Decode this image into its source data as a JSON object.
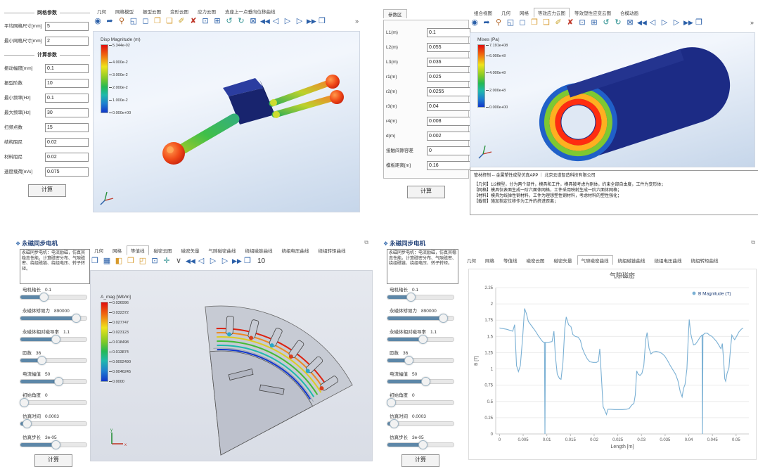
{
  "colors": {
    "accent": "#2a5fa8",
    "chart_line": "#7ab0d4",
    "title_blue": "#1f3f77",
    "slider_fill": "#5d87a8",
    "viewport_blue_top": "#e9f0fa",
    "viewport_blue_bottom": "#c6d6ea",
    "colorbar_top": "#e00d0d",
    "colorbar_bottom": "#1136c9"
  },
  "viewer_toolbar": {
    "icons": [
      {
        "name": "capture-icon",
        "glyph": "◉",
        "color": "#2a5fa8"
      },
      {
        "name": "export-view-icon",
        "glyph": "➦",
        "color": "#2a5fa8"
      },
      {
        "name": "magnifier-icon",
        "glyph": "⚲",
        "color": "#b06020"
      },
      {
        "name": "fit-region-icon",
        "glyph": "◱",
        "color": "#2a5fa8"
      },
      {
        "name": "select-region-icon",
        "glyph": "◻",
        "color": "#2a5fa8"
      },
      {
        "name": "folder-open-icon",
        "glyph": "❐",
        "color": "#d79a2b"
      },
      {
        "name": "folder-new-icon",
        "glyph": "❏",
        "color": "#d79a2b"
      },
      {
        "name": "brush-icon",
        "glyph": "✐",
        "color": "#c9a227"
      },
      {
        "name": "delete-icon",
        "glyph": "✘",
        "color": "#c0392b"
      },
      {
        "name": "zoom-window-icon",
        "glyph": "⊡",
        "color": "#2a5fa8"
      },
      {
        "name": "center-model-icon",
        "glyph": "⊞",
        "color": "#2a5fa8"
      },
      {
        "name": "rotate-left-icon",
        "glyph": "↺",
        "color": "#2a8f8f"
      },
      {
        "name": "rotate-right-icon",
        "glyph": "↻",
        "color": "#2a8f8f"
      },
      {
        "name": "record-video-icon",
        "glyph": "⊠",
        "color": "#2a5fa8"
      },
      {
        "name": "go-first-icon",
        "glyph": "◀◀",
        "color": "#2a5fa8"
      },
      {
        "name": "step-back-icon",
        "glyph": "◁",
        "color": "#2a5fa8"
      },
      {
        "name": "play-icon",
        "glyph": "▷",
        "color": "#2a5fa8"
      },
      {
        "name": "step-forward-icon",
        "glyph": "▷",
        "color": "#2a5fa8"
      },
      {
        "name": "go-last-icon",
        "glyph": "▶▶",
        "color": "#2a5fa8"
      },
      {
        "name": "export-anim-icon",
        "glyph": "❒",
        "color": "#2a5fa8"
      }
    ],
    "overflow": "»"
  },
  "player_toolbar": {
    "icons": [
      {
        "name": "view-split-icon",
        "glyph": "❐",
        "color": "#2a5fa8"
      },
      {
        "name": "mesh-view-icon",
        "glyph": "▦",
        "color": "#2a5fa8"
      },
      {
        "name": "shade-view-icon",
        "glyph": "◧",
        "color": "#d79a2b"
      },
      {
        "name": "iso-view-icon",
        "glyph": "❒",
        "color": "#d79a2b"
      },
      {
        "name": "wire-view-icon",
        "glyph": "◰",
        "color": "#d79a2b"
      },
      {
        "name": "fit-view-icon",
        "glyph": "⊡",
        "color": "#2a5fa8"
      },
      {
        "name": "axes-icon",
        "glyph": "✛",
        "color": "#2a8f8f"
      },
      {
        "name": "dropdown-caret-icon",
        "glyph": "∨",
        "color": "#555555"
      },
      {
        "name": "go-first-icon",
        "glyph": "◀◀",
        "color": "#2a5fa8"
      },
      {
        "name": "step-back-icon",
        "glyph": "◁",
        "color": "#2a5fa8"
      },
      {
        "name": "play-icon",
        "glyph": "▷",
        "color": "#2a5fa8"
      },
      {
        "name": "step-forward-icon",
        "glyph": "▷",
        "color": "#2a5fa8"
      },
      {
        "name": "go-last-icon",
        "glyph": "▶▶",
        "color": "#2a5fa8"
      },
      {
        "name": "export-anim-icon",
        "glyph": "❒",
        "color": "#2a5fa8"
      }
    ],
    "frame_count": "10"
  },
  "tl": {
    "groups": [
      {
        "title": "网格参数",
        "fields": [
          {
            "label": "平均网格尺寸[mm]",
            "value": "5"
          },
          {
            "label": "最小网格尺寸[mm]",
            "value": "2"
          }
        ]
      },
      {
        "title": "计算参数",
        "fields": [
          {
            "label": "振动幅度[mm]",
            "value": "0.1"
          },
          {
            "label": "振型阶数",
            "value": "10"
          },
          {
            "label": "最小频率[Hz]",
            "value": "0.1"
          },
          {
            "label": "最大频率[Hz]",
            "value": "30"
          },
          {
            "label": "扫频点数",
            "value": "15"
          },
          {
            "label": "结构阻尼",
            "value": "0.02"
          },
          {
            "label": "材料阻尼",
            "value": "0.02"
          },
          {
            "label": "速度载荷[m/s]",
            "value": "0.075"
          }
        ]
      }
    ],
    "calc_button": "计算",
    "tabs": {
      "items": [
        "几何",
        "网格模型",
        "振型云图",
        "变形云图",
        "应力云图",
        "支座上一点垂向位移曲线"
      ],
      "selected": -1
    },
    "colorbar": {
      "title": "Disp Magnitude (m)",
      "ticks": [
        {
          "label": "5.344e-02",
          "pos": 0
        },
        {
          "label": "4.000e-2",
          "pos": 0.251
        },
        {
          "label": "3.000e-2",
          "pos": 0.439
        },
        {
          "label": "2.000e-2",
          "pos": 0.626
        },
        {
          "label": "1.000e-2",
          "pos": 0.813
        },
        {
          "label": "0.000e+00",
          "pos": 1
        }
      ]
    }
  },
  "tr": {
    "panel_tab": "参数区",
    "fields": [
      {
        "label": "L1(m)",
        "value": "0.1"
      },
      {
        "label": "L2(m)",
        "value": "0.055"
      },
      {
        "label": "L3(m)",
        "value": "0.036"
      },
      {
        "label": "r1(m)",
        "value": "0.025"
      },
      {
        "label": "r2(m)",
        "value": "0.0255"
      },
      {
        "label": "r3(m)",
        "value": "0.04"
      },
      {
        "label": "r4(m)",
        "value": "0.008"
      },
      {
        "label": "d(m)",
        "value": "0.002"
      },
      {
        "label": "接触间隙容差",
        "value": "0"
      },
      {
        "label": "模板距离[m]",
        "value": "0.16"
      }
    ],
    "calc_button": "计算",
    "tabs": {
      "items": [
        "组合视图",
        "几何",
        "网格",
        "等效应力云图",
        "等效塑性应变云图",
        "合模动画"
      ],
      "selected": 3
    },
    "colorbar": {
      "title": "Mises (Pa)",
      "ticks": [
        {
          "label": "7.191e+08",
          "pos": 0
        },
        {
          "label": "6.000e+8",
          "pos": 0.166
        },
        {
          "label": "4.000e+8",
          "pos": 0.444
        },
        {
          "label": "2.000e+8",
          "pos": 0.722
        },
        {
          "label": "0.000e+00",
          "pos": 1
        }
      ]
    },
    "info": {
      "header": "管材挤制 -- 金属塑性成型仿真APP    ｜    北京云道智造科技有限公司",
      "lines": [
        "【几何】1/2模型，分为两个部件，模具和工件，模具被考虑为刚体，约束全部自由度，工件为变形体；",
        "【网格】模具仅表面生成一阶六面体网格，工件采用映射生成一阶六面体网格；",
        "【材料】模具为线弹性钢材料，工件为理想塑性钢材料，考虑材料的塑性强化；",
        "【载荷】施加指定位移作为工件的挤进距离；"
      ]
    }
  },
  "motor": {
    "title": "永磁同步电机",
    "description": "永磁同步电机：电流励磁，仿真其稳态性能。计算磁密分布、气隙磁密、绕组磁链、绕组电压、转子转矩。",
    "sliders": [
      {
        "label": "电机轴长",
        "value": "0.1",
        "pct": 34
      },
      {
        "label": "永磁体矫顽力",
        "value": "890000",
        "pct": 83
      },
      {
        "label": "永磁体相对磁导率",
        "value": "1.1",
        "pct": 52
      },
      {
        "label": "匝数",
        "value": "36",
        "pct": 31
      },
      {
        "label": "电流幅值",
        "value": "50",
        "pct": 56
      },
      {
        "label": "初始角度",
        "value": "0",
        "pct": 4
      },
      {
        "label": "仿真时间",
        "value": "0.0003",
        "pct": 8
      },
      {
        "label": "仿真步长",
        "value": "3e-05",
        "pct": 52
      }
    ],
    "calc_button": "计算",
    "tabs": [
      "几何",
      "网格",
      "等值线",
      "磁密云图",
      "磁密矢量",
      "气隙磁密曲线",
      "绕组磁链曲线",
      "绕组电压曲线",
      "绕组转矩曲线"
    ],
    "bl_selected": 2,
    "br_selected": 5,
    "colorbar": {
      "title": "A_mag [Wb/m]",
      "ticks": [
        {
          "label": "0.036996",
          "pos": 0
        },
        {
          "label": "0.032372",
          "pos": 0.125
        },
        {
          "label": "0.027747",
          "pos": 0.25
        },
        {
          "label": "0.023123",
          "pos": 0.375
        },
        {
          "label": "0.018498",
          "pos": 0.5
        },
        {
          "label": "0.013874",
          "pos": 0.625
        },
        {
          "label": "0.0092490",
          "pos": 0.75
        },
        {
          "label": "0.0046245",
          "pos": 0.875
        },
        {
          "label": "0.0000",
          "pos": 1
        }
      ]
    }
  },
  "chart_data": {
    "type": "line",
    "title": "气隙磁密",
    "xlabel": "Length [m]",
    "ylabel": "B [T]",
    "xlim": [
      -0.0008,
      0.0527
    ],
    "ylim": [
      0,
      2.25
    ],
    "xticks": [
      0,
      0.005,
      0.01,
      0.015,
      0.02,
      0.025,
      0.03,
      0.035,
      0.04,
      0.045,
      0.05
    ],
    "yticks": [
      0,
      0.25,
      0.5,
      0.75,
      1,
      1.25,
      1.5,
      1.75,
      2,
      2.25
    ],
    "legend_position": "top-right",
    "grid": "horizontal",
    "series": [
      {
        "name": "B Magnitude (T)",
        "color": "#7ab0d4",
        "points": [
          [
            0,
            1.63
          ],
          [
            0.0015,
            1.61
          ],
          [
            0.0028,
            1.58
          ],
          [
            0.0032,
            1.68
          ],
          [
            0.0036,
            1.05
          ],
          [
            0.004,
            0.96
          ],
          [
            0.0044,
            1.05
          ],
          [
            0.0049,
            1.5
          ],
          [
            0.0053,
            1.93
          ],
          [
            0.0057,
            1.85
          ],
          [
            0.0061,
            1.73
          ],
          [
            0.0068,
            1.66
          ],
          [
            0.0075,
            1.59
          ],
          [
            0.0083,
            1.5
          ],
          [
            0.009,
            1.43
          ],
          [
            0.0093,
            1.41
          ],
          [
            0.0095,
            1.41
          ],
          [
            0.0096,
            0.0
          ],
          [
            0.0097,
            1.41
          ],
          [
            0.0104,
            1.41
          ],
          [
            0.0111,
            1.42
          ],
          [
            0.0115,
            1.58
          ],
          [
            0.0118,
            1.2
          ],
          [
            0.0122,
            0.92
          ],
          [
            0.0127,
            0.85
          ],
          [
            0.013,
            0.84
          ],
          [
            0.0134,
            1.1
          ],
          [
            0.0138,
            1.62
          ],
          [
            0.0141,
            1.8
          ],
          [
            0.0146,
            1.68
          ],
          [
            0.0151,
            1.65
          ],
          [
            0.0155,
            1.53
          ],
          [
            0.016,
            1.5
          ],
          [
            0.0166,
            1.49
          ],
          [
            0.0171,
            1.44
          ],
          [
            0.0175,
            1.32
          ],
          [
            0.018,
            1.23
          ],
          [
            0.0186,
            1.15
          ],
          [
            0.0191,
            1.11
          ],
          [
            0.0198,
            1.1
          ],
          [
            0.0205,
            1.1
          ],
          [
            0.0209,
            1.12
          ],
          [
            0.0212,
            1.31
          ],
          [
            0.0216,
            0.8
          ],
          [
            0.0219,
            0.42
          ],
          [
            0.0222,
            0.37
          ],
          [
            0.0226,
            0.3
          ],
          [
            0.0229,
            0.38
          ],
          [
            0.0235,
            0.38
          ],
          [
            0.0243,
            0.375
          ],
          [
            0.0252,
            0.375
          ],
          [
            0.026,
            0.375
          ],
          [
            0.0268,
            0.38
          ],
          [
            0.0274,
            0.39
          ],
          [
            0.0279,
            0.44
          ],
          [
            0.0284,
            0.47
          ],
          [
            0.0287,
            0.6
          ],
          [
            0.029,
            0.97
          ],
          [
            0.0293,
            0.92
          ],
          [
            0.0297,
            0.9
          ],
          [
            0.0301,
            0.93
          ],
          [
            0.0305,
            1.05
          ],
          [
            0.0309,
            1.45
          ],
          [
            0.0312,
            1.56
          ],
          [
            0.0316,
            1.32
          ],
          [
            0.032,
            1.23
          ],
          [
            0.0325,
            1.26
          ],
          [
            0.0331,
            1.27
          ],
          [
            0.0337,
            1.26
          ],
          [
            0.0343,
            1.24
          ],
          [
            0.0349,
            1.2
          ],
          [
            0.0355,
            1.13
          ],
          [
            0.0361,
            1.05
          ],
          [
            0.0367,
            0.98
          ],
          [
            0.0372,
            0.92
          ],
          [
            0.0377,
            0.82
          ],
          [
            0.0382,
            0.65
          ],
          [
            0.0386,
            0.57
          ],
          [
            0.0389,
            0.7
          ],
          [
            0.0392,
            0.76
          ],
          [
            0.0396,
            1.0
          ],
          [
            0.0399,
            1.5
          ],
          [
            0.0401,
            1.76
          ],
          [
            0.0404,
            1.55
          ],
          [
            0.0407,
            1.45
          ],
          [
            0.041,
            1.37
          ],
          [
            0.0414,
            1.38
          ],
          [
            0.0419,
            1.43
          ],
          [
            0.0424,
            1.49
          ],
          [
            0.0428,
            1.52
          ],
          [
            0.0429,
            0.0
          ],
          [
            0.043,
            1.52
          ],
          [
            0.0434,
            1.55
          ],
          [
            0.0439,
            1.55
          ],
          [
            0.0444,
            1.52
          ],
          [
            0.0449,
            1.5
          ],
          [
            0.0454,
            1.46
          ],
          [
            0.0459,
            1.42
          ],
          [
            0.0464,
            1.36
          ],
          [
            0.0468,
            1.31
          ],
          [
            0.0471,
            1.39
          ],
          [
            0.0474,
            1.1
          ],
          [
            0.0476,
            0.85
          ],
          [
            0.0478,
            0.81
          ],
          [
            0.0481,
            0.93
          ],
          [
            0.0485,
            1.02
          ],
          [
            0.0488,
            1.3
          ],
          [
            0.0491,
            1.52
          ],
          [
            0.0494,
            1.48
          ],
          [
            0.0497,
            1.45
          ],
          [
            0.0501,
            1.5
          ],
          [
            0.0506,
            1.57
          ],
          [
            0.0511,
            1.61
          ],
          [
            0.0515,
            1.63
          ]
        ]
      }
    ]
  }
}
